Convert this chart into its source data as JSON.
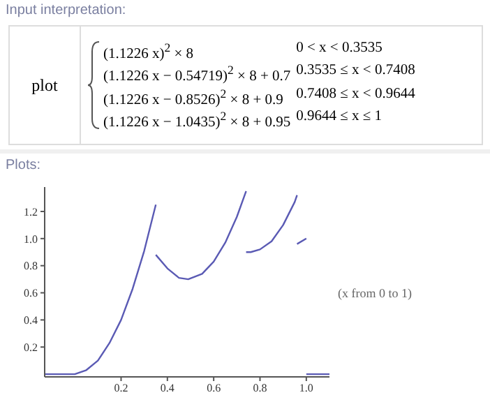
{
  "chart_data": {
    "type": "line",
    "annotations": [
      "Input interpretation:",
      "plot",
      "(1.1226 x)$^{2}$ × 8",
      "(1.1226 x − 0.54719)$^{2}$ × 8 + 0.7",
      "(1.1226 x − 0.8526)$^{2}$ × 8 + 0.9",
      "(1.1226 x − 1.0435)$^{2}$ × 8 + 0.95",
      "0 < x < 0.3535",
      "0.3535 ≤ x < 0.7408",
      "0.7408 ≤ x < 0.9644",
      "0.9644 ≤ x ≤ 1",
      "Plots:",
      "(x from 0 to 1)"
    ],
    "series": [
      {
        "color": "#5a5ab4",
        "x": [
          -0.13,
          0,
          0.05,
          0.1,
          0.15,
          0.2,
          0.25,
          0.3,
          0.35
        ],
        "values": [
          0,
          0,
          0.03,
          0.1,
          0.23,
          0.4,
          0.63,
          0.91,
          1.25
        ]
      },
      {
        "color": "#5a5ab4",
        "x": [
          0.35,
          0.4,
          0.45,
          0.49,
          0.55,
          0.6,
          0.65,
          0.7,
          0.74
        ],
        "values": [
          0.88,
          0.78,
          0.71,
          0.7,
          0.74,
          0.83,
          0.97,
          1.16,
          1.35
        ]
      },
      {
        "color": "#5a5ab4",
        "x": [
          0.74,
          0.76,
          0.8,
          0.85,
          0.9,
          0.95,
          0.96
        ],
        "values": [
          0.9,
          0.9,
          0.92,
          0.98,
          1.1,
          1.27,
          1.32
        ]
      },
      {
        "color": "#5a5ab4",
        "x": [
          0.96,
          1
        ],
        "values": [
          0.96,
          1
        ]
      },
      {
        "color": "#5a5ab4",
        "x": [
          1,
          1.1
        ],
        "values": [
          0,
          0
        ]
      }
    ],
    "xlim": [
      -0.13,
      1.1
    ],
    "ylim": [
      -0.02,
      1.38
    ],
    "xticks": [
      0.2,
      0.4,
      0.6,
      0.8,
      {
        "value": 1,
        "label": "1.0"
      }
    ],
    "yticks": [
      0.2,
      0.4,
      0.6,
      0.8,
      {
        "value": 1,
        "label": "1.0"
      },
      1.2
    ],
    "grid": false,
    "legend": false,
    "marker": "none",
    "line_style": "solid"
  }
}
